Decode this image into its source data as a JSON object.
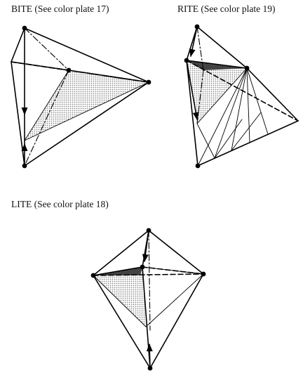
{
  "captions": {
    "bite": "BITE (See color plate 17)",
    "rite": "RITE (See color plate 19)",
    "lite": "LITE (See color plate 18)"
  },
  "colors": {
    "light_shade": "#c9c9c9",
    "dark_shade": "#3a3a3a",
    "line": "#000000",
    "background": "#ffffff"
  }
}
